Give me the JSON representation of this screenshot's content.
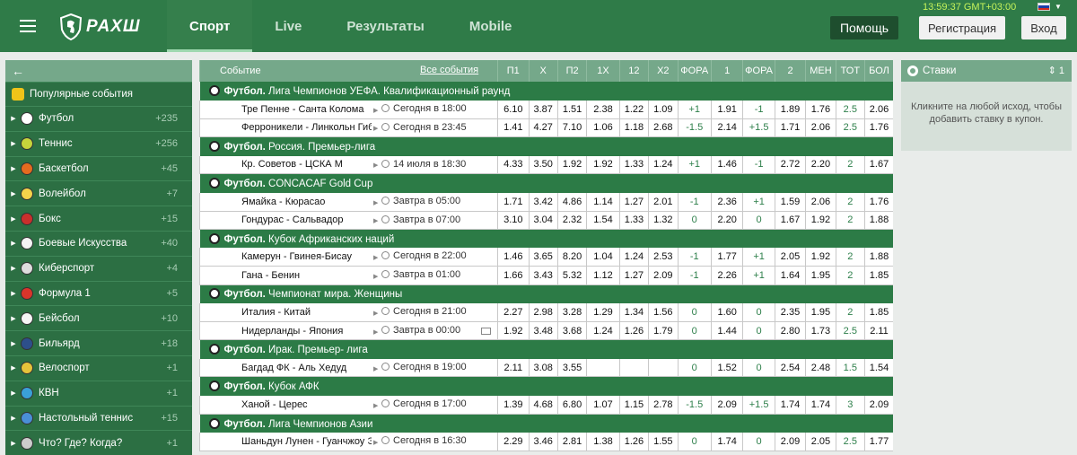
{
  "header": {
    "logo_text": "РАХШ",
    "nav": [
      "Спорт",
      "Live",
      "Результаты",
      "Mobile"
    ],
    "clock": "13:59:37 GMT+03:00",
    "flag_caret": "▼",
    "help": "Помощь",
    "register": "Регистрация",
    "login": "Вход"
  },
  "sidebar": {
    "back": "←",
    "popular": "Популярные события",
    "items": [
      {
        "label": "Футбол",
        "count": "+235",
        "color": "#ffffff"
      },
      {
        "label": "Теннис",
        "count": "+256",
        "color": "#c6d43b"
      },
      {
        "label": "Баскетбол",
        "count": "+45",
        "color": "#e46b1f"
      },
      {
        "label": "Волейбол",
        "count": "+7",
        "color": "#f5d34a"
      },
      {
        "label": "Бокс",
        "count": "+15",
        "color": "#c9302c"
      },
      {
        "label": "Боевые Искусства",
        "count": "+40",
        "color": "#f3f3f3"
      },
      {
        "label": "Киберспорт",
        "count": "+4",
        "color": "#dddddd"
      },
      {
        "label": "Формула 1",
        "count": "+5",
        "color": "#d9352b"
      },
      {
        "label": "Бейсбол",
        "count": "+10",
        "color": "#f5f5f5"
      },
      {
        "label": "Бильярд",
        "count": "+18",
        "color": "#2d4f8a"
      },
      {
        "label": "Велоспорт",
        "count": "+1",
        "color": "#e6c33a"
      },
      {
        "label": "КВН",
        "count": "+1",
        "color": "#3aa0d8"
      },
      {
        "label": "Настольный теннис",
        "count": "+15",
        "color": "#4a8fd6"
      },
      {
        "label": "Что? Где? Когда?",
        "count": "+1",
        "color": "#cccccc"
      }
    ]
  },
  "table": {
    "head_event": "Событие",
    "head_all": "Все события",
    "columns": [
      "П1",
      "X",
      "П2",
      "1X",
      "12",
      "X2",
      "ФОРА",
      "1",
      "ФОРА",
      "2",
      "МЕН",
      "ТОТ",
      "БОЛ"
    ],
    "leagues": [
      {
        "name_bold": "Футбол.",
        "name": "Лига Чемпионов УЕФА. Квалификационный раунд",
        "matches": [
          {
            "teams": "Тре Пенне - Санта Колома",
            "time": "Сегодня в 18:00",
            "tv": false,
            "odds": [
              "6.10",
              "3.87",
              "1.51",
              "2.38",
              "1.22",
              "1.09",
              "+1",
              "1.91",
              "-1",
              "1.89",
              "1.76",
              "2.5",
              "2.06"
            ]
          },
          {
            "teams": "Ферроникели - Линкольн Гибралтар",
            "time": "Сегодня в 23:45",
            "tv": false,
            "odds": [
              "1.41",
              "4.27",
              "7.10",
              "1.06",
              "1.18",
              "2.68",
              "-1.5",
              "2.14",
              "+1.5",
              "1.71",
              "2.06",
              "2.5",
              "1.76"
            ]
          }
        ]
      },
      {
        "name_bold": "Футбол.",
        "name": "Россия. Премьер-лига",
        "matches": [
          {
            "teams": "Кр. Советов - ЦСКА М",
            "time": "14 июля в 18:30",
            "tv": false,
            "odds": [
              "4.33",
              "3.50",
              "1.92",
              "1.92",
              "1.33",
              "1.24",
              "+1",
              "1.46",
              "-1",
              "2.72",
              "2.20",
              "2",
              "1.67"
            ]
          }
        ]
      },
      {
        "name_bold": "Футбол.",
        "name": "CONCACAF Gold Cup",
        "matches": [
          {
            "teams": "Ямайка - Кюрасао",
            "time": "Завтра в 05:00",
            "tv": false,
            "odds": [
              "1.71",
              "3.42",
              "4.86",
              "1.14",
              "1.27",
              "2.01",
              "-1",
              "2.36",
              "+1",
              "1.59",
              "2.06",
              "2",
              "1.76"
            ]
          },
          {
            "teams": "Гондурас - Сальвадор",
            "time": "Завтра в 07:00",
            "tv": false,
            "odds": [
              "3.10",
              "3.04",
              "2.32",
              "1.54",
              "1.33",
              "1.32",
              "0",
              "2.20",
              "0",
              "1.67",
              "1.92",
              "2",
              "1.88"
            ]
          }
        ]
      },
      {
        "name_bold": "Футбол.",
        "name": "Кубок Африканских наций",
        "matches": [
          {
            "teams": "Камерун - Гвинея-Бисау",
            "time": "Сегодня в 22:00",
            "tv": false,
            "odds": [
              "1.46",
              "3.65",
              "8.20",
              "1.04",
              "1.24",
              "2.53",
              "-1",
              "1.77",
              "+1",
              "2.05",
              "1.92",
              "2",
              "1.88"
            ]
          },
          {
            "teams": "Гана - Бенин",
            "time": "Завтра в 01:00",
            "tv": false,
            "odds": [
              "1.66",
              "3.43",
              "5.32",
              "1.12",
              "1.27",
              "2.09",
              "-1",
              "2.26",
              "+1",
              "1.64",
              "1.95",
              "2",
              "1.85"
            ]
          }
        ]
      },
      {
        "name_bold": "Футбол.",
        "name": "Чемпионат мира. Женщины",
        "matches": [
          {
            "teams": "Италия - Китай",
            "time": "Сегодня в 21:00",
            "tv": false,
            "odds": [
              "2.27",
              "2.98",
              "3.28",
              "1.29",
              "1.34",
              "1.56",
              "0",
              "1.60",
              "0",
              "2.35",
              "1.95",
              "2",
              "1.85"
            ]
          },
          {
            "teams": "Нидерланды - Япония",
            "time": "Завтра в 00:00",
            "tv": true,
            "odds": [
              "1.92",
              "3.48",
              "3.68",
              "1.24",
              "1.26",
              "1.79",
              "0",
              "1.44",
              "0",
              "2.80",
              "1.73",
              "2.5",
              "2.11"
            ]
          }
        ]
      },
      {
        "name_bold": "Футбол.",
        "name": "Ирак. Премьер- лига",
        "matches": [
          {
            "teams": "Багдад ФК - Аль Хедуд",
            "time": "Сегодня в 19:00",
            "tv": false,
            "odds": [
              "2.11",
              "3.08",
              "3.55",
              "",
              "",
              "",
              "0",
              "1.52",
              "0",
              "2.54",
              "2.48",
              "1.5",
              "1.54"
            ]
          }
        ]
      },
      {
        "name_bold": "Футбол.",
        "name": "Кубок АФК",
        "matches": [
          {
            "teams": "Ханой - Церес",
            "time": "Сегодня в 17:00",
            "tv": false,
            "odds": [
              "1.39",
              "4.68",
              "6.80",
              "1.07",
              "1.15",
              "2.78",
              "-1.5",
              "2.09",
              "+1.5",
              "1.74",
              "1.74",
              "3",
              "2.09"
            ]
          }
        ]
      },
      {
        "name_bold": "Футбол.",
        "name": "Лига Чемпионов Азии",
        "matches": [
          {
            "teams": "Шаньдун Лунен - Гуанчжоу Эвергранд",
            "time": "Сегодня в 16:30",
            "tv": false,
            "odds": [
              "2.29",
              "3.46",
              "2.81",
              "1.38",
              "1.26",
              "1.55",
              "0",
              "1.74",
              "0",
              "2.09",
              "2.05",
              "2.5",
              "1.77"
            ]
          }
        ]
      }
    ]
  },
  "bets": {
    "title": "Ставки",
    "arrows": "⇕ 1",
    "text": "Кликните на любой исход, чтобы добавить ставку в купон."
  }
}
